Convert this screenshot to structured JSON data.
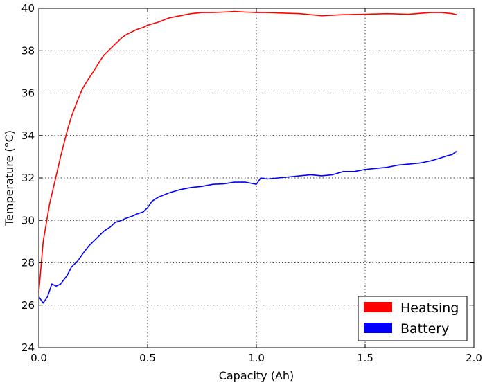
{
  "chart_data": {
    "type": "line",
    "title": "",
    "xlabel": "Capacity (Ah)",
    "ylabel": "Temperature (°C)",
    "xlim": [
      0.0,
      2.0
    ],
    "ylim": [
      24,
      40
    ],
    "xticks": [
      "0.0",
      "0.5",
      "1.0",
      "1.5",
      "2.0"
    ],
    "yticks": [
      "24",
      "26",
      "28",
      "30",
      "32",
      "34",
      "36",
      "38",
      "40"
    ],
    "grid": true,
    "legend_position": "bottom-right",
    "series": [
      {
        "name": "Heatsing",
        "color": "#ff0000",
        "x": [
          0.0,
          0.02,
          0.05,
          0.08,
          0.1,
          0.13,
          0.15,
          0.18,
          0.2,
          0.23,
          0.25,
          0.28,
          0.3,
          0.33,
          0.35,
          0.38,
          0.4,
          0.43,
          0.45,
          0.48,
          0.5,
          0.55,
          0.6,
          0.65,
          0.7,
          0.75,
          0.8,
          0.85,
          0.9,
          0.95,
          1.0,
          1.05,
          1.1,
          1.2,
          1.3,
          1.4,
          1.5,
          1.6,
          1.7,
          1.8,
          1.85,
          1.9,
          1.92
        ],
        "y": [
          26.6,
          29.0,
          30.8,
          32.1,
          33.0,
          34.2,
          34.9,
          35.7,
          36.2,
          36.7,
          37.0,
          37.5,
          37.8,
          38.1,
          38.3,
          38.6,
          38.75,
          38.9,
          39.0,
          39.1,
          39.2,
          39.35,
          39.55,
          39.65,
          39.75,
          39.8,
          39.8,
          39.82,
          39.85,
          39.82,
          39.8,
          39.8,
          39.78,
          39.75,
          39.65,
          39.7,
          39.72,
          39.75,
          39.72,
          39.8,
          39.8,
          39.75,
          39.7
        ]
      },
      {
        "name": "Battery",
        "color": "#0000ff",
        "x": [
          0.0,
          0.02,
          0.04,
          0.06,
          0.08,
          0.1,
          0.13,
          0.15,
          0.18,
          0.2,
          0.23,
          0.25,
          0.28,
          0.3,
          0.33,
          0.35,
          0.38,
          0.4,
          0.43,
          0.45,
          0.48,
          0.5,
          0.52,
          0.55,
          0.6,
          0.65,
          0.7,
          0.75,
          0.8,
          0.85,
          0.9,
          0.95,
          1.0,
          1.02,
          1.05,
          1.1,
          1.15,
          1.2,
          1.25,
          1.3,
          1.35,
          1.4,
          1.45,
          1.5,
          1.55,
          1.6,
          1.65,
          1.7,
          1.75,
          1.8,
          1.85,
          1.88,
          1.9,
          1.92
        ],
        "y": [
          26.4,
          26.1,
          26.4,
          27.0,
          26.9,
          27.0,
          27.4,
          27.8,
          28.1,
          28.4,
          28.8,
          29.0,
          29.3,
          29.5,
          29.7,
          29.9,
          30.0,
          30.1,
          30.2,
          30.3,
          30.4,
          30.6,
          30.9,
          31.1,
          31.3,
          31.45,
          31.55,
          31.6,
          31.7,
          31.72,
          31.8,
          31.8,
          31.7,
          32.0,
          31.95,
          32.0,
          32.05,
          32.1,
          32.15,
          32.1,
          32.15,
          32.3,
          32.3,
          32.4,
          32.45,
          32.5,
          32.6,
          32.65,
          32.7,
          32.8,
          32.95,
          33.05,
          33.1,
          33.25
        ]
      }
    ]
  }
}
